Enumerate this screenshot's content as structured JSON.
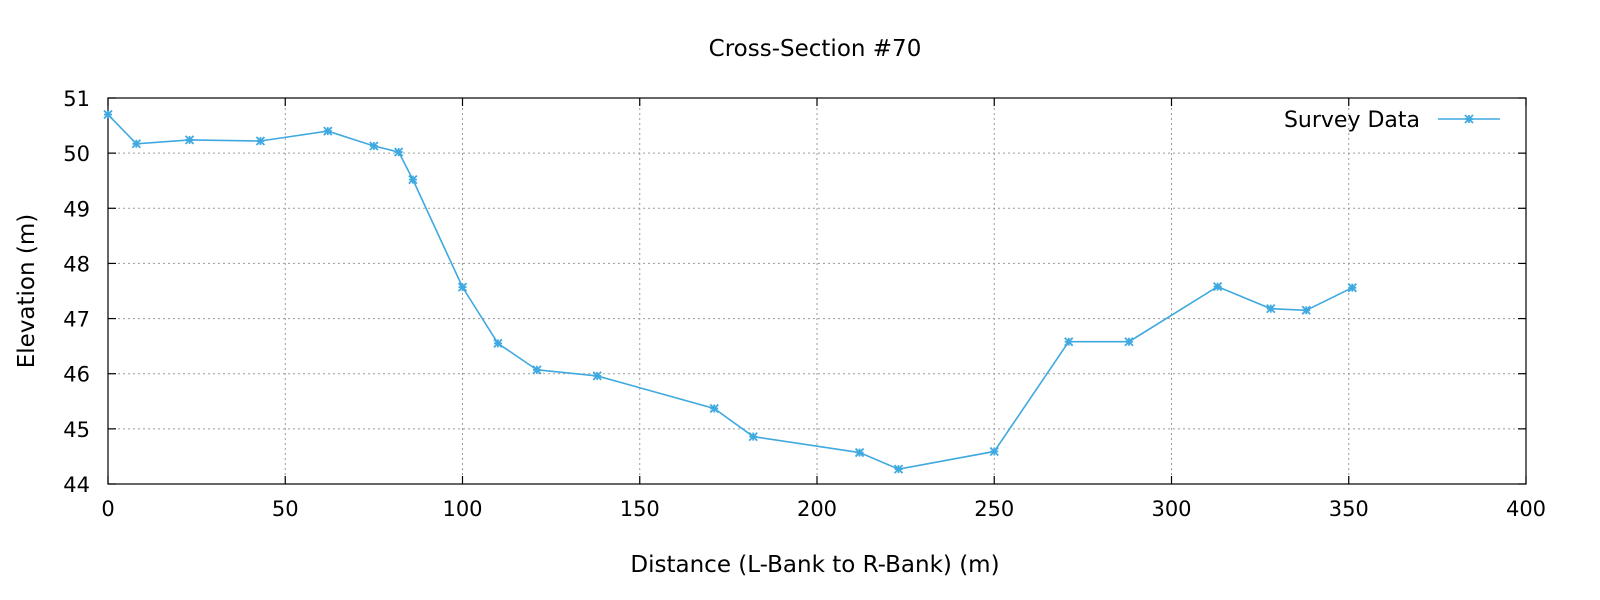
{
  "chart_data": {
    "type": "line",
    "title": "Cross-Section #70",
    "xlabel": "Distance (L-Bank to R-Bank) (m)",
    "ylabel": "Elevation (m)",
    "xlim": [
      0,
      400
    ],
    "ylim": [
      44,
      51
    ],
    "xticks": [
      "0",
      "50",
      "100",
      "150",
      "200",
      "250",
      "300",
      "350",
      "400"
    ],
    "yticks": [
      "44",
      "45",
      "46",
      "47",
      "48",
      "49",
      "50",
      "51"
    ],
    "grid": true,
    "legend_position": "top-right",
    "series": [
      {
        "name": "Survey Data",
        "color": "#3fa9e0",
        "marker": "asterisk",
        "x": [
          0,
          8,
          23,
          43,
          62,
          75,
          82,
          86,
          100,
          110,
          121,
          138,
          171,
          182,
          212,
          223,
          250,
          271,
          288,
          313,
          328,
          338,
          351
        ],
        "y": [
          50.7,
          50.17,
          50.24,
          50.22,
          50.4,
          50.13,
          50.02,
          49.52,
          47.57,
          46.55,
          46.07,
          45.96,
          45.37,
          44.86,
          44.57,
          44.27,
          44.59,
          46.58,
          46.58,
          47.58,
          47.18,
          47.15,
          47.56
        ]
      }
    ]
  }
}
